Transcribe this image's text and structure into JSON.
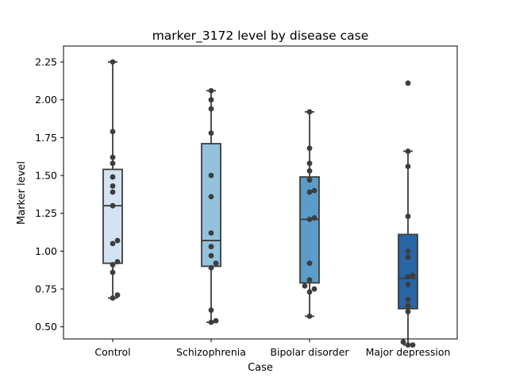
{
  "chart_data": {
    "type": "box",
    "title": "marker_3172 level by disease case",
    "xlabel": "Case",
    "ylabel": "Marker level",
    "ylim": [
      0.42,
      2.355
    ],
    "yticks": [
      "0.50",
      "0.75",
      "1.00",
      "1.25",
      "1.50",
      "1.75",
      "2.00",
      "2.25"
    ],
    "categories": [
      "Control",
      "Schizophrenia",
      "Bipolar disorder",
      "Major depression"
    ],
    "box_colors": [
      "#d4e3f2",
      "#94c2dd",
      "#5b9cc9",
      "#2a65a6"
    ],
    "line_color": "#3d3d3d",
    "point_color": "#3d3d3d",
    "boxes": [
      {
        "whisker_low": 0.69,
        "q1": 0.92,
        "median": 1.3,
        "q3": 1.54,
        "whisker_high": 2.25,
        "outliers": []
      },
      {
        "whisker_low": 0.53,
        "q1": 0.9,
        "median": 1.07,
        "q3": 1.71,
        "whisker_high": 2.06,
        "outliers": []
      },
      {
        "whisker_low": 0.57,
        "q1": 0.79,
        "median": 1.21,
        "q3": 1.49,
        "whisker_high": 1.92,
        "outliers": []
      },
      {
        "whisker_low": 0.38,
        "q1": 0.62,
        "median": 0.82,
        "q3": 1.11,
        "whisker_high": 1.66,
        "outliers": [
          2.11
        ]
      }
    ],
    "points": [
      [
        2.25,
        1.79,
        1.62,
        1.58,
        1.49,
        1.43,
        1.39,
        1.3,
        1.07,
        1.05,
        0.93,
        0.91,
        0.86,
        0.71,
        0.69
      ],
      [
        2.06,
        2.0,
        1.94,
        1.78,
        1.5,
        1.36,
        1.12,
        1.03,
        0.97,
        0.92,
        0.89,
        0.61,
        0.54,
        0.53
      ],
      [
        1.92,
        1.68,
        1.58,
        1.53,
        1.47,
        1.4,
        1.39,
        1.22,
        1.21,
        0.92,
        0.81,
        0.77,
        0.75,
        0.73,
        0.57
      ],
      [
        2.11,
        1.66,
        1.56,
        1.23,
        1.0,
        0.96,
        0.84,
        0.83,
        0.78,
        0.68,
        0.64,
        0.6,
        0.4,
        0.38,
        0.38
      ]
    ]
  }
}
